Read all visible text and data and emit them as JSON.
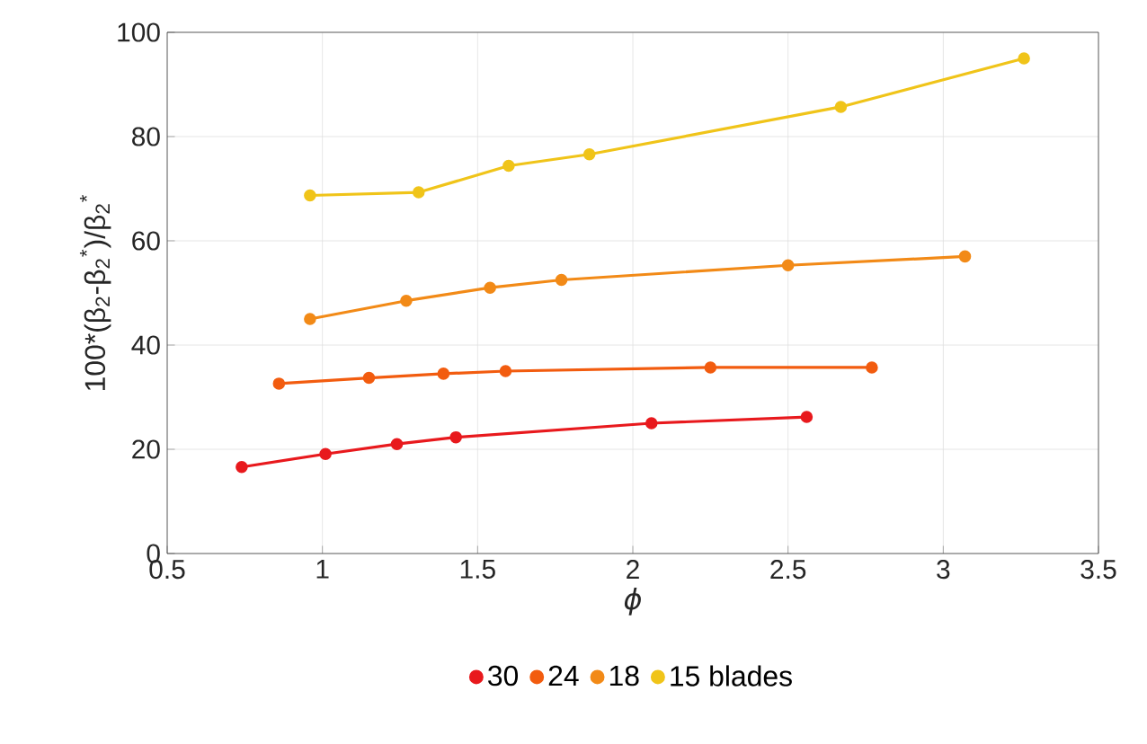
{
  "chart_data": {
    "type": "line",
    "xlabel": "ϕ",
    "ylabel": "100*(β$_{2}$-β$_{2}$$^{*}$)/β$_{2}$$^{*}$",
    "xlim": [
      0.5,
      3.5
    ],
    "xticks": [
      0.5,
      1,
      1.5,
      2,
      2.5,
      3,
      3.5
    ],
    "ylim": [
      0,
      100
    ],
    "yticks": [
      0,
      20,
      40,
      60,
      80,
      100
    ],
    "grid": true,
    "legend": "bottom",
    "marker": "circle",
    "line_style": "solid",
    "series": [
      {
        "name": "30",
        "color": "#e8191d",
        "x": [
          0.74,
          1.01,
          1.24,
          1.43,
          2.06,
          2.56
        ],
        "values": [
          16.6,
          19.1,
          21,
          22.3,
          25,
          26.2
        ]
      },
      {
        "name": "24",
        "color": "#f25c0f",
        "x": [
          0.86,
          1.15,
          1.39,
          1.59,
          2.25,
          2.77
        ],
        "values": [
          32.6,
          33.7,
          34.5,
          35,
          35.7,
          35.7
        ]
      },
      {
        "name": "18",
        "color": "#f28a17",
        "x": [
          0.96,
          1.27,
          1.54,
          1.77,
          2.5,
          3.07
        ],
        "values": [
          45,
          48.5,
          51,
          52.5,
          55.3,
          57
        ]
      },
      {
        "name": "15 blades",
        "color": "#f0c419",
        "x": [
          0.96,
          1.31,
          1.6,
          1.86,
          2.67,
          3.26
        ],
        "values": [
          68.7,
          69.3,
          74.4,
          76.6,
          85.7,
          95
        ]
      }
    ]
  }
}
